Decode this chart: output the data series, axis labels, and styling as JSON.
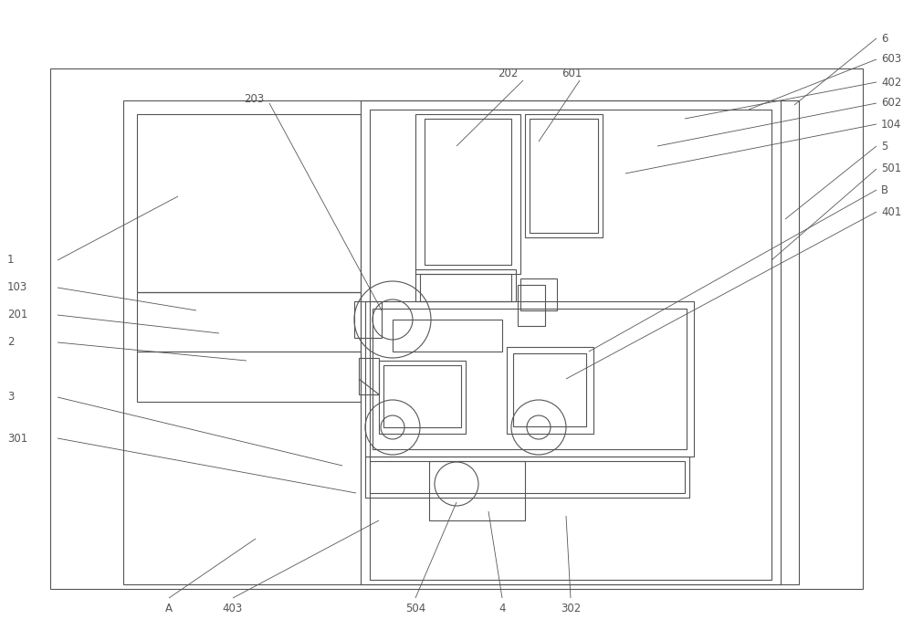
{
  "bg_color": "#ffffff",
  "lc": "#555555",
  "lw": 0.8,
  "fig_w": 10.0,
  "fig_h": 6.9
}
